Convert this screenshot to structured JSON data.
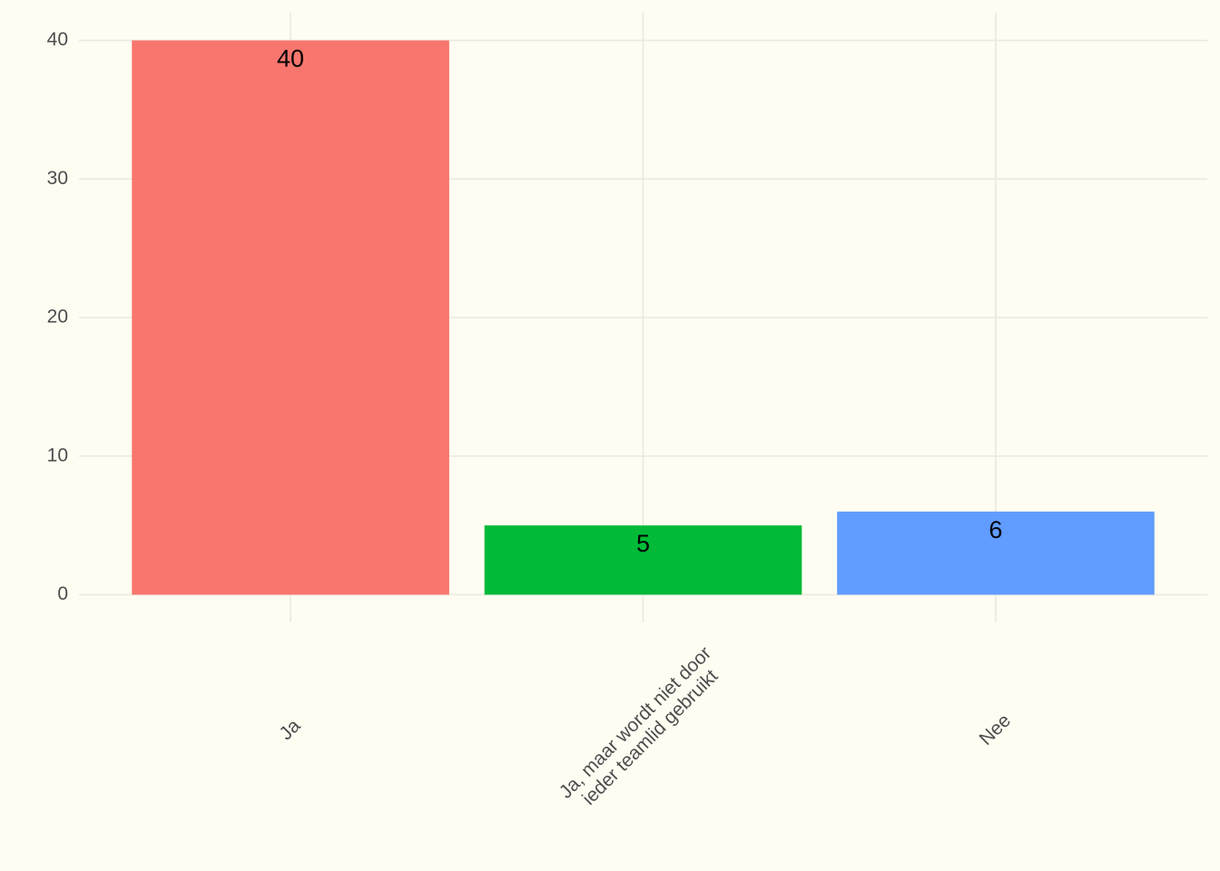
{
  "chart_data": {
    "type": "bar",
    "categories": [
      "Ja",
      "Ja, maar wordt niet door\nieder teamlid gebruikt",
      "Nee"
    ],
    "values": [
      40,
      5,
      6
    ],
    "colors": [
      "#f8766d",
      "#00ba38",
      "#619cff"
    ],
    "ylim": [
      -2,
      42
    ],
    "yticks": [
      0,
      10,
      20,
      30,
      40
    ],
    "grid": true
  }
}
